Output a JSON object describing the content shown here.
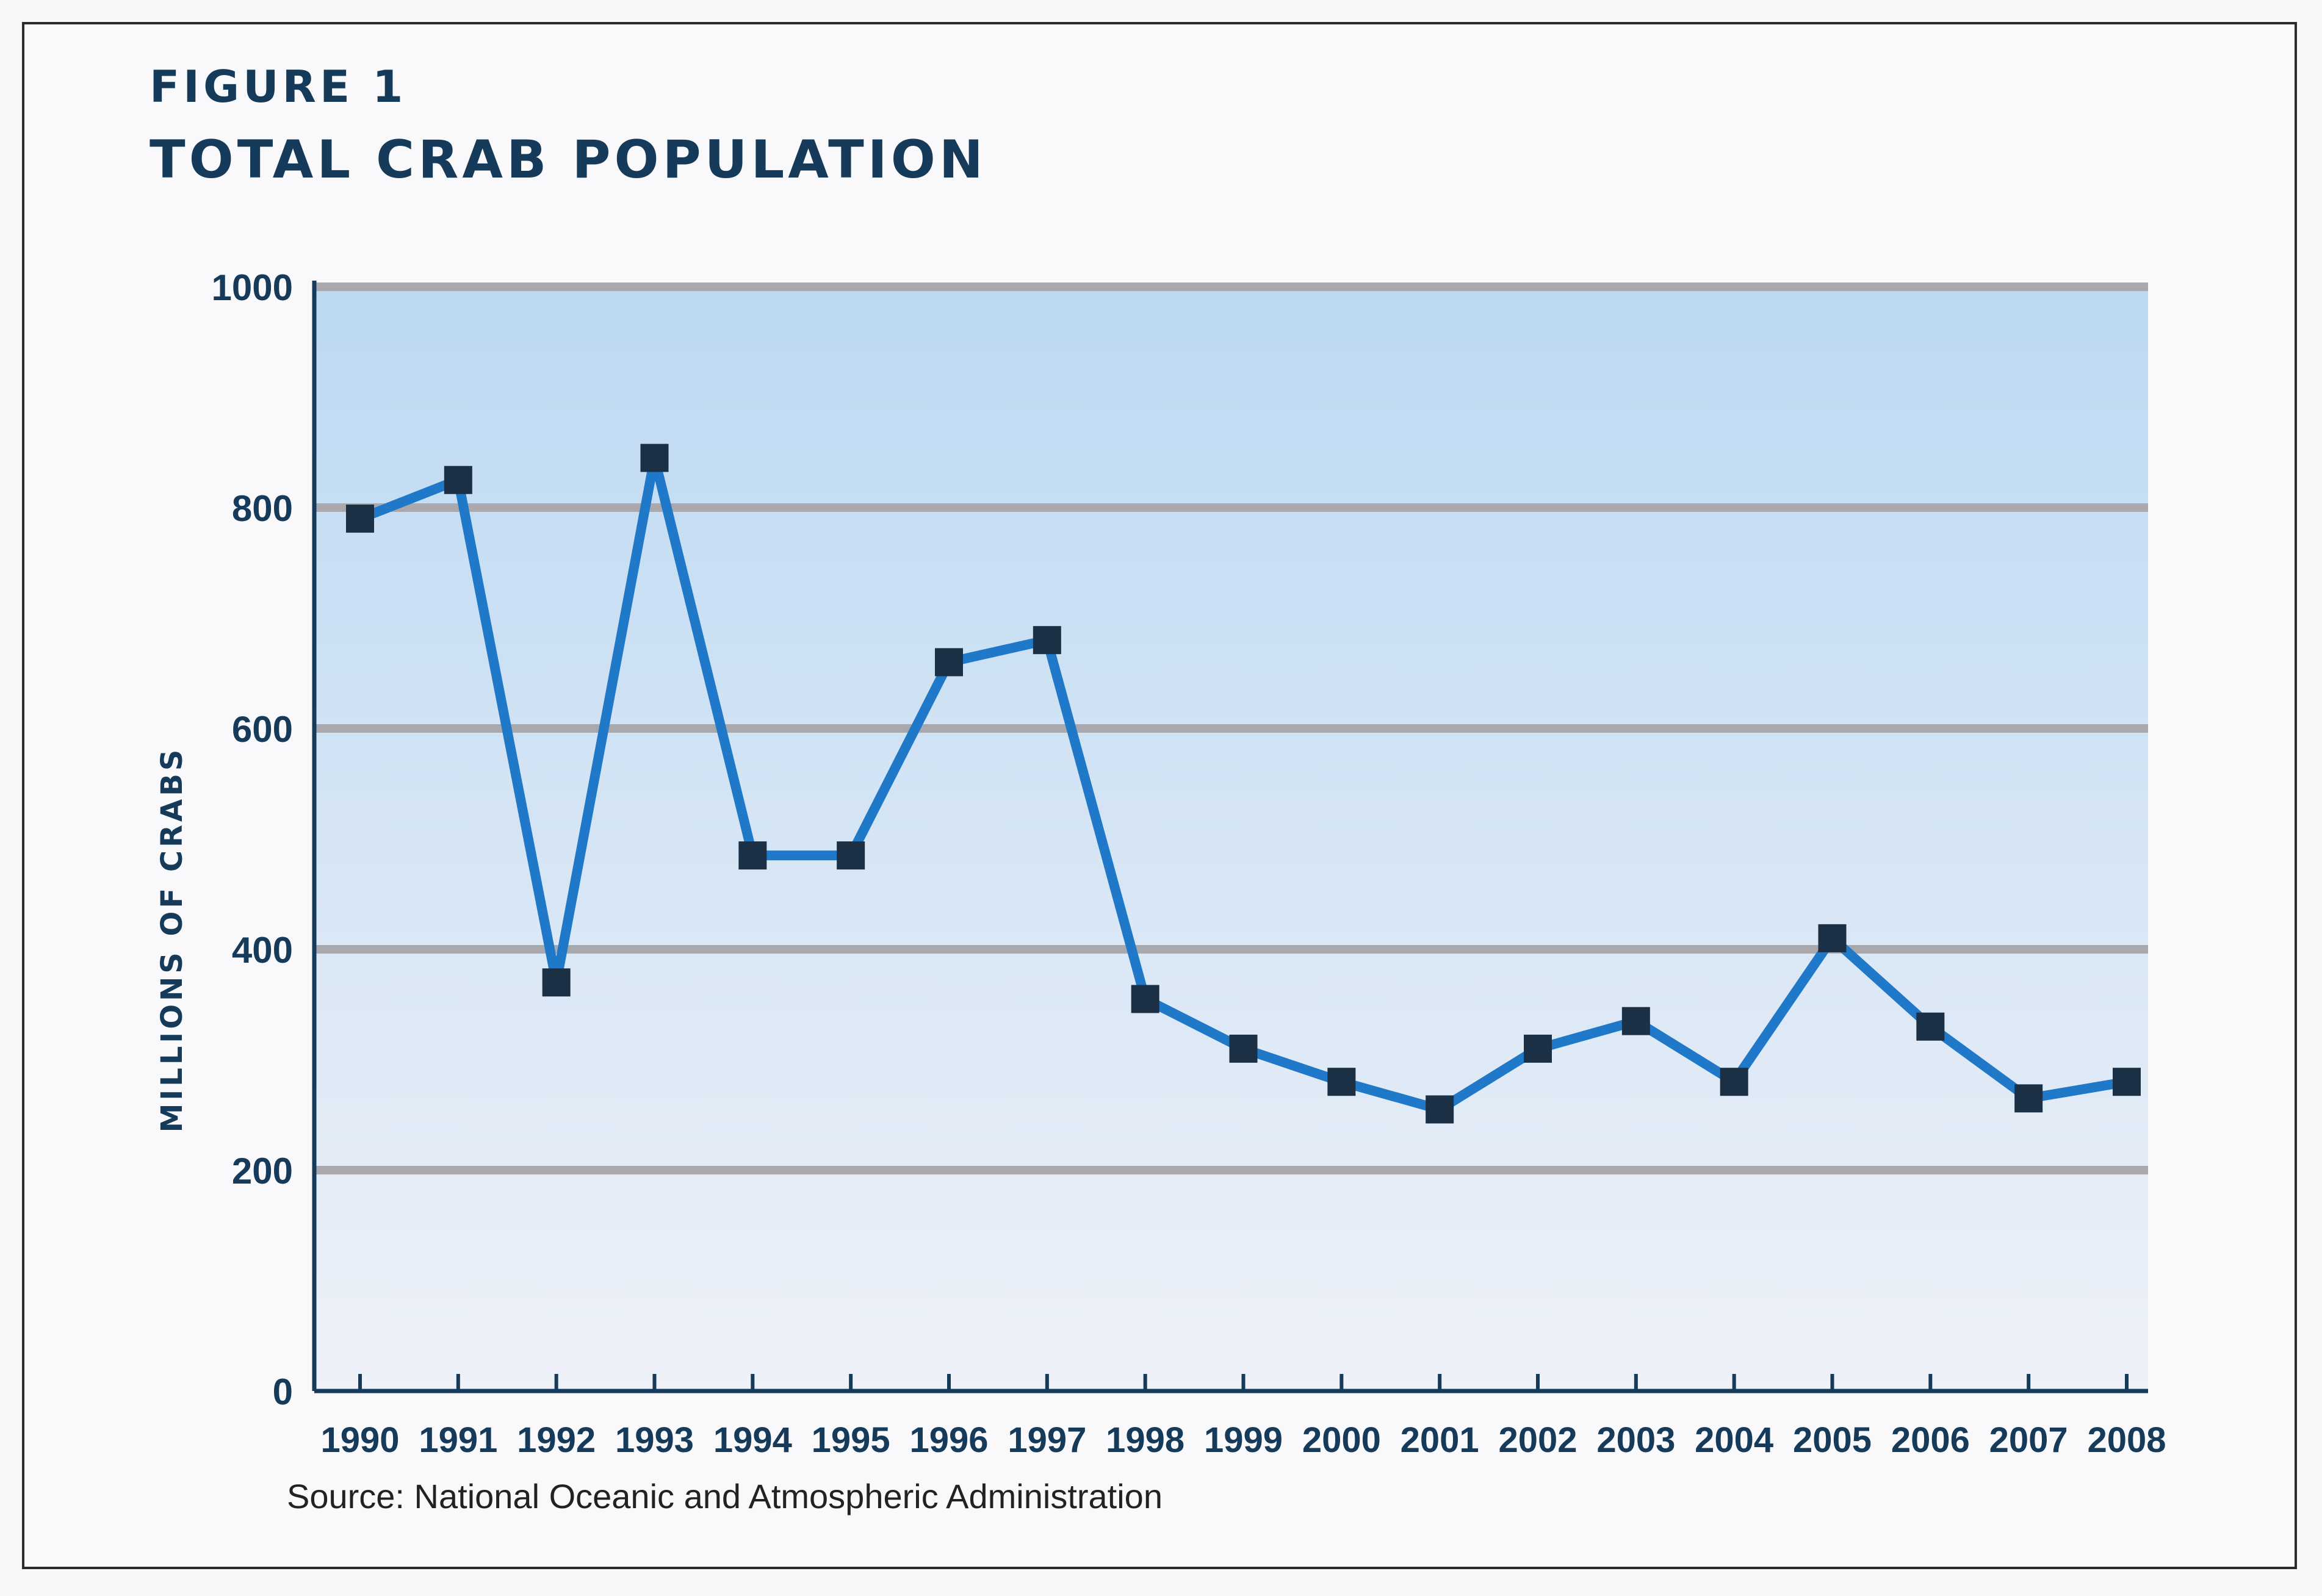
{
  "figure": {
    "label": "FIGURE 1",
    "title": "TOTAL CRAB POPULATION",
    "source": "Source: National Oceanic and Atmospheric Administration"
  },
  "colors": {
    "line": "#1f78c8",
    "marker": "#1b2f45",
    "axis": "#153a5a",
    "grid": "#a9a9ad",
    "band_top": "#bcd9f2",
    "band_bottom": "#eef1f8"
  },
  "chart_data": {
    "type": "line",
    "title": "TOTAL CRAB POPULATION",
    "xlabel": "",
    "ylabel": "MILLIONS OF CRABS",
    "ylim": [
      0,
      1000
    ],
    "yticks": [
      0,
      200,
      400,
      600,
      800,
      1000
    ],
    "grid": true,
    "categories": [
      "1990",
      "1991",
      "1992",
      "1993",
      "1994",
      "1995",
      "1996",
      "1997",
      "1998",
      "1999",
      "2000",
      "2001",
      "2002",
      "2003",
      "2004",
      "2005",
      "2006",
      "2007",
      "2008"
    ],
    "series": [
      {
        "values": [
          790,
          825,
          370,
          845,
          485,
          485,
          660,
          680,
          355,
          310,
          280,
          255,
          310,
          335,
          280,
          410,
          330,
          265,
          280
        ]
      }
    ]
  }
}
